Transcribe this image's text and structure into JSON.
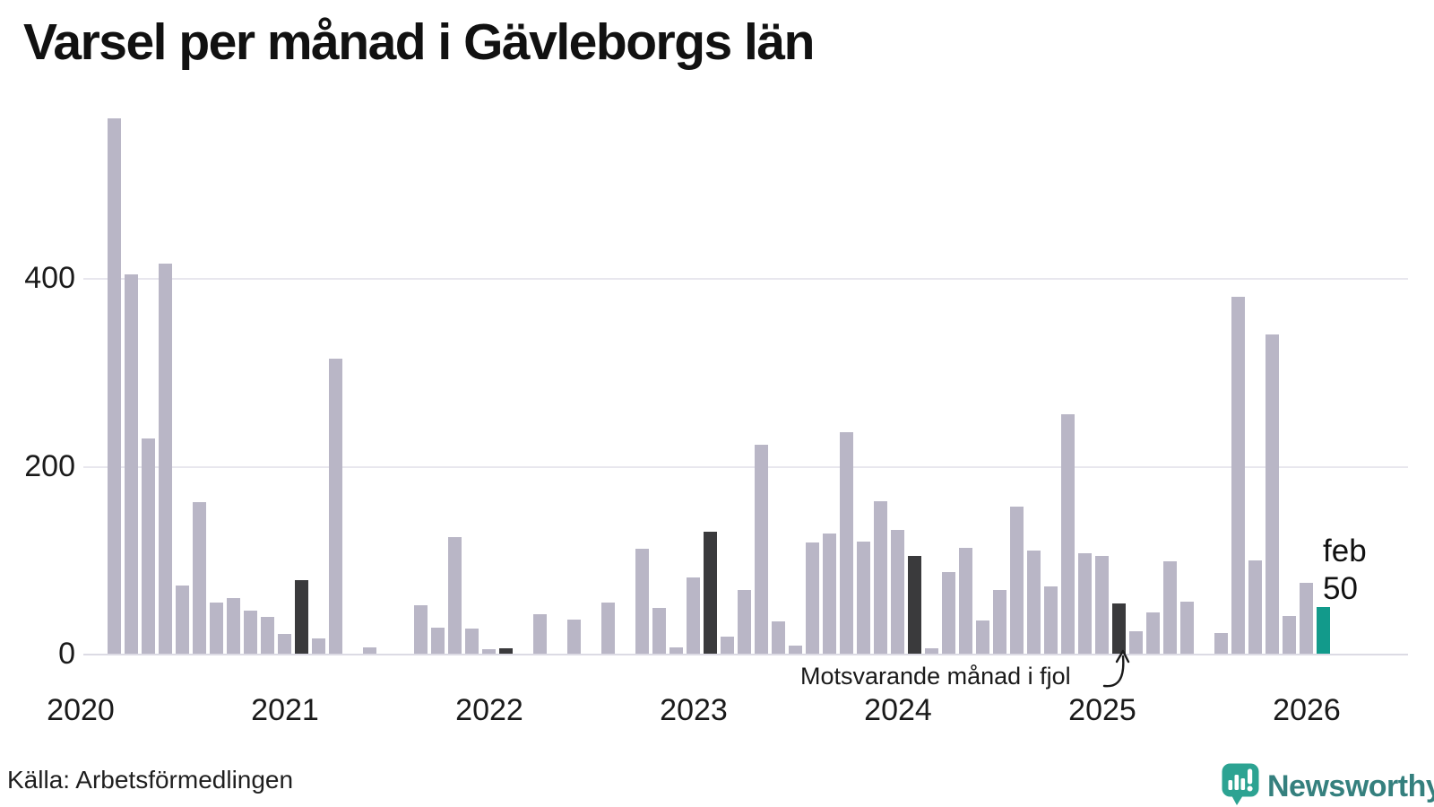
{
  "chart_data": {
    "type": "bar",
    "title": "Varsel per månad i Gävleborgs län",
    "ylim": [
      0,
      580
    ],
    "grid": "horizontal",
    "y_axis": {
      "ticks": [
        0,
        200,
        400
      ]
    },
    "x_axis": {
      "years": [
        "2020",
        "2021",
        "2022",
        "2023",
        "2024",
        "2025",
        "2026"
      ]
    },
    "months": [
      {
        "month": "2020-01",
        "value": 0,
        "kind": "normal"
      },
      {
        "month": "2020-02",
        "value": 0,
        "kind": "feb"
      },
      {
        "month": "2020-03",
        "value": 570,
        "kind": "normal"
      },
      {
        "month": "2020-04",
        "value": 404,
        "kind": "normal"
      },
      {
        "month": "2020-05",
        "value": 229,
        "kind": "normal"
      },
      {
        "month": "2020-06",
        "value": 415,
        "kind": "normal"
      },
      {
        "month": "2020-07",
        "value": 73,
        "kind": "normal"
      },
      {
        "month": "2020-08",
        "value": 161,
        "kind": "normal"
      },
      {
        "month": "2020-09",
        "value": 54,
        "kind": "normal"
      },
      {
        "month": "2020-10",
        "value": 59,
        "kind": "normal"
      },
      {
        "month": "2020-11",
        "value": 46,
        "kind": "normal"
      },
      {
        "month": "2020-12",
        "value": 39,
        "kind": "normal"
      },
      {
        "month": "2021-01",
        "value": 21,
        "kind": "normal"
      },
      {
        "month": "2021-02",
        "value": 78,
        "kind": "feb"
      },
      {
        "month": "2021-03",
        "value": 16,
        "kind": "normal"
      },
      {
        "month": "2021-04",
        "value": 314,
        "kind": "normal"
      },
      {
        "month": "2021-05",
        "value": 0,
        "kind": "normal"
      },
      {
        "month": "2021-06",
        "value": 7,
        "kind": "normal"
      },
      {
        "month": "2021-07",
        "value": 0,
        "kind": "normal"
      },
      {
        "month": "2021-08",
        "value": 0,
        "kind": "normal"
      },
      {
        "month": "2021-09",
        "value": 52,
        "kind": "normal"
      },
      {
        "month": "2021-10",
        "value": 28,
        "kind": "normal"
      },
      {
        "month": "2021-11",
        "value": 124,
        "kind": "normal"
      },
      {
        "month": "2021-12",
        "value": 27,
        "kind": "normal"
      },
      {
        "month": "2022-01",
        "value": 5,
        "kind": "normal"
      },
      {
        "month": "2022-02",
        "value": 6,
        "kind": "feb"
      },
      {
        "month": "2022-03",
        "value": 0,
        "kind": "normal"
      },
      {
        "month": "2022-04",
        "value": 42,
        "kind": "normal"
      },
      {
        "month": "2022-05",
        "value": 0,
        "kind": "normal"
      },
      {
        "month": "2022-06",
        "value": 36,
        "kind": "normal"
      },
      {
        "month": "2022-07",
        "value": 0,
        "kind": "normal"
      },
      {
        "month": "2022-08",
        "value": 54,
        "kind": "normal"
      },
      {
        "month": "2022-09",
        "value": 0,
        "kind": "normal"
      },
      {
        "month": "2022-10",
        "value": 112,
        "kind": "normal"
      },
      {
        "month": "2022-11",
        "value": 49,
        "kind": "normal"
      },
      {
        "month": "2022-12",
        "value": 7,
        "kind": "normal"
      },
      {
        "month": "2023-01",
        "value": 81,
        "kind": "normal"
      },
      {
        "month": "2023-02",
        "value": 130,
        "kind": "feb"
      },
      {
        "month": "2023-03",
        "value": 18,
        "kind": "normal"
      },
      {
        "month": "2023-04",
        "value": 68,
        "kind": "normal"
      },
      {
        "month": "2023-05",
        "value": 222,
        "kind": "normal"
      },
      {
        "month": "2023-06",
        "value": 34,
        "kind": "normal"
      },
      {
        "month": "2023-07",
        "value": 9,
        "kind": "normal"
      },
      {
        "month": "2023-08",
        "value": 118,
        "kind": "normal"
      },
      {
        "month": "2023-09",
        "value": 128,
        "kind": "normal"
      },
      {
        "month": "2023-10",
        "value": 236,
        "kind": "normal"
      },
      {
        "month": "2023-11",
        "value": 119,
        "kind": "normal"
      },
      {
        "month": "2023-12",
        "value": 162,
        "kind": "normal"
      },
      {
        "month": "2024-01",
        "value": 132,
        "kind": "normal"
      },
      {
        "month": "2024-02",
        "value": 104,
        "kind": "feb"
      },
      {
        "month": "2024-03",
        "value": 6,
        "kind": "normal"
      },
      {
        "month": "2024-04",
        "value": 87,
        "kind": "normal"
      },
      {
        "month": "2024-05",
        "value": 113,
        "kind": "normal"
      },
      {
        "month": "2024-06",
        "value": 35,
        "kind": "normal"
      },
      {
        "month": "2024-07",
        "value": 68,
        "kind": "normal"
      },
      {
        "month": "2024-08",
        "value": 157,
        "kind": "normal"
      },
      {
        "month": "2024-09",
        "value": 110,
        "kind": "normal"
      },
      {
        "month": "2024-10",
        "value": 72,
        "kind": "normal"
      },
      {
        "month": "2024-11",
        "value": 255,
        "kind": "normal"
      },
      {
        "month": "2024-12",
        "value": 107,
        "kind": "normal"
      },
      {
        "month": "2025-01",
        "value": 104,
        "kind": "normal"
      },
      {
        "month": "2025-02",
        "value": 53,
        "kind": "feb"
      },
      {
        "month": "2025-03",
        "value": 24,
        "kind": "normal"
      },
      {
        "month": "2025-04",
        "value": 44,
        "kind": "normal"
      },
      {
        "month": "2025-05",
        "value": 98,
        "kind": "normal"
      },
      {
        "month": "2025-06",
        "value": 55,
        "kind": "normal"
      },
      {
        "month": "2025-07",
        "value": 0,
        "kind": "normal"
      },
      {
        "month": "2025-08",
        "value": 22,
        "kind": "normal"
      },
      {
        "month": "2025-09",
        "value": 380,
        "kind": "normal"
      },
      {
        "month": "2025-10",
        "value": 99,
        "kind": "normal"
      },
      {
        "month": "2025-11",
        "value": 340,
        "kind": "normal"
      },
      {
        "month": "2025-12",
        "value": 40,
        "kind": "normal"
      },
      {
        "month": "2026-01",
        "value": 75,
        "kind": "normal"
      },
      {
        "month": "2026-02",
        "value": 50,
        "kind": "current"
      }
    ]
  },
  "colors": {
    "bar": "#b9b6c6",
    "february": "#3a3a3c",
    "current": "#129a8b",
    "gridline": "#e8e7ee",
    "baseline": "#dcdbe4",
    "brand_icon": "#2ca392",
    "brand_text": "#35807e"
  },
  "annotation": {
    "text": "Motsvarande månad i fjol",
    "target_month": "2025-02"
  },
  "current_label": {
    "month": "feb",
    "value": "50"
  },
  "source": "Källa: Arbetsförmedlingen",
  "branding": {
    "name": "Newsworthy"
  }
}
